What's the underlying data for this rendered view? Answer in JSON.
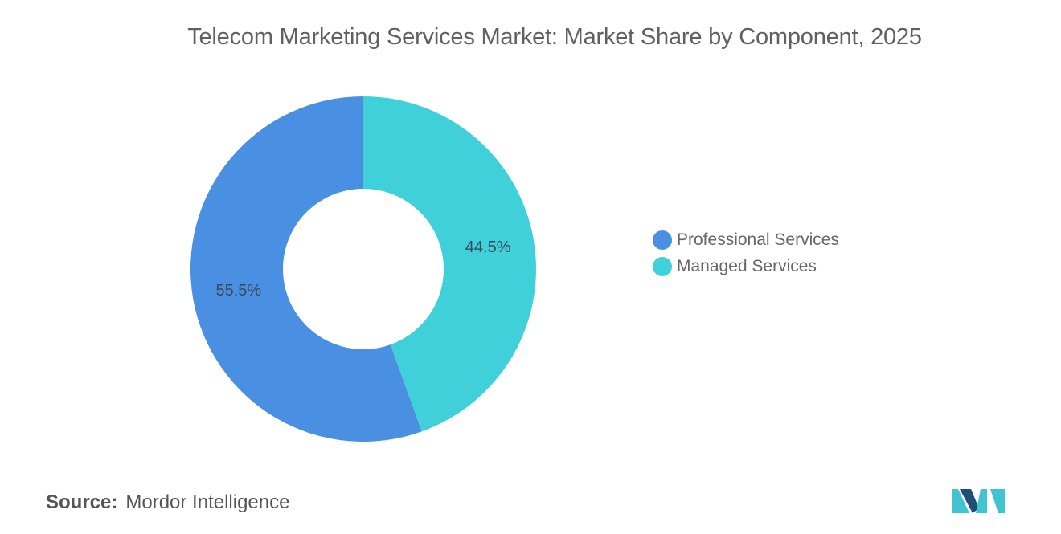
{
  "chart_data": {
    "type": "pie",
    "title": "Telecom Marketing Services Market: Market Share by Component, 2025",
    "categories": [
      "Professional Services",
      "Managed Services"
    ],
    "values": [
      55.5,
      44.5
    ],
    "data_labels": [
      "55.5%",
      "44.5%"
    ],
    "colors": [
      "#4a90e2",
      "#40d0da"
    ],
    "donut": true,
    "legend_position": "right"
  },
  "source": {
    "label": "Source:",
    "value": "Mordor Intelligence"
  },
  "logo": {
    "icon": "mordor-intelligence-logo-icon",
    "colors": [
      "#1f4e79",
      "#40c4d0"
    ]
  }
}
